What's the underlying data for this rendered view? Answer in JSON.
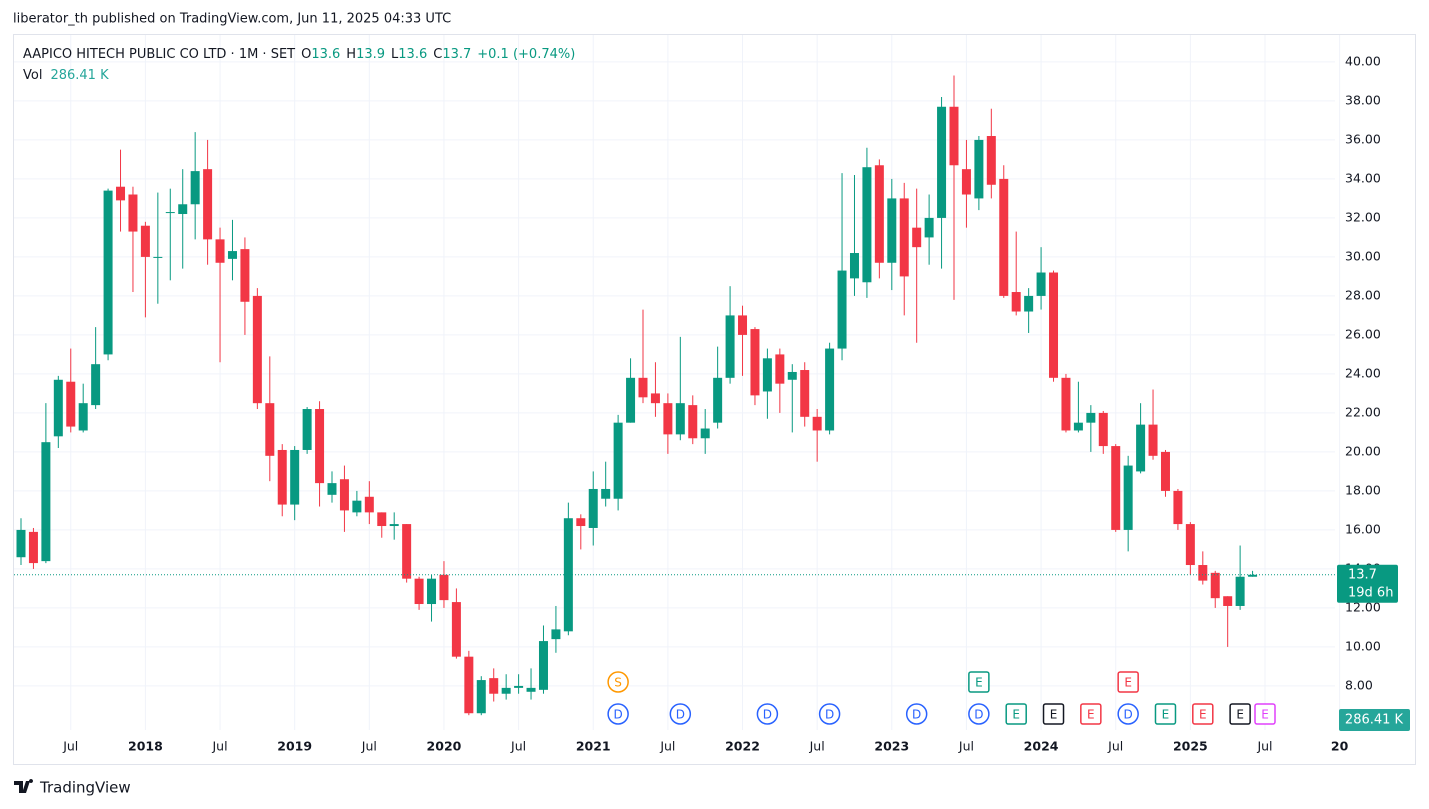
{
  "published": "liberator_th published on TradingView.com, Jun 11, 2025 04:33 UTC",
  "brand": "TradingView",
  "header": {
    "symbol": "AAPICO HITECH PUBLIC CO LTD · 1M · SET",
    "ohlc": [
      {
        "label": "O",
        "value": 13.6
      },
      {
        "label": "H",
        "value": 13.9
      },
      {
        "label": "L",
        "value": 13.6
      },
      {
        "label": "C",
        "value": 13.7
      }
    ],
    "change": "+0.1 (+0.74%)",
    "vol_label": "Vol",
    "vol_value": "286.41 K"
  },
  "price_label": {
    "value": 13.7,
    "countdown": "19d 6h"
  },
  "volume_label": "286.41 K",
  "chart_data": {
    "type": "candlestick",
    "up_color": "#089981",
    "down_color": "#f23645",
    "grid": true,
    "ylim": [
      5.74,
      41.38
    ],
    "yticks": [
      {
        "value": 8,
        "label": "8.00"
      },
      {
        "value": 10,
        "label": "10.00"
      },
      {
        "value": 12,
        "label": "12.00"
      },
      {
        "value": 14,
        "label": "14.00"
      },
      {
        "value": 16,
        "label": "16.00"
      },
      {
        "value": 18,
        "label": "18.00"
      },
      {
        "value": 20,
        "label": "20.00"
      },
      {
        "value": 22,
        "label": "22.00"
      },
      {
        "value": 24,
        "label": "24.00"
      },
      {
        "value": 26,
        "label": "26.00"
      },
      {
        "value": 28,
        "label": "28.00"
      },
      {
        "value": 30,
        "label": "30.00"
      },
      {
        "value": 32,
        "label": "32.00"
      },
      {
        "value": 34,
        "label": "34.00"
      },
      {
        "value": 36,
        "label": "36.00"
      },
      {
        "value": 38,
        "label": "38.00"
      },
      {
        "value": 40,
        "label": "40.00"
      }
    ],
    "xticks": [
      {
        "value": "2017-07",
        "label": "Jul"
      },
      {
        "value": "2018-01",
        "label": "2018"
      },
      {
        "value": "2018-07",
        "label": "Jul"
      },
      {
        "value": "2019-01",
        "label": "2019"
      },
      {
        "value": "2019-07",
        "label": "Jul"
      },
      {
        "value": "2020-01",
        "label": "2020"
      },
      {
        "value": "2020-07",
        "label": "Jul"
      },
      {
        "value": "2021-01",
        "label": "2021"
      },
      {
        "value": "2021-07",
        "label": "Jul"
      },
      {
        "value": "2022-01",
        "label": "2022"
      },
      {
        "value": "2022-07",
        "label": "Jul"
      },
      {
        "value": "2023-01",
        "label": "2023"
      },
      {
        "value": "2023-07",
        "label": "Jul"
      },
      {
        "value": "2024-01",
        "label": "2024"
      },
      {
        "value": "2024-07",
        "label": "Jul"
      },
      {
        "value": "2025-01",
        "label": "2025"
      },
      {
        "value": "2025-07",
        "label": "Jul"
      },
      {
        "value": "2026-01",
        "label": "20"
      }
    ],
    "x": [
      "2017-03",
      "2017-04",
      "2017-05",
      "2017-06",
      "2017-07",
      "2017-08",
      "2017-09",
      "2017-10",
      "2017-11",
      "2017-12",
      "2018-01",
      "2018-02",
      "2018-03",
      "2018-04",
      "2018-05",
      "2018-06",
      "2018-07",
      "2018-08",
      "2018-09",
      "2018-10",
      "2018-11",
      "2018-12",
      "2019-01",
      "2019-02",
      "2019-03",
      "2019-04",
      "2019-05",
      "2019-06",
      "2019-07",
      "2019-08",
      "2019-09",
      "2019-10",
      "2019-11",
      "2019-12",
      "2020-01",
      "2020-02",
      "2020-03",
      "2020-04",
      "2020-05",
      "2020-06",
      "2020-07",
      "2020-08",
      "2020-09",
      "2020-10",
      "2020-11",
      "2020-12",
      "2021-01",
      "2021-02",
      "2021-03",
      "2021-04",
      "2021-05",
      "2021-06",
      "2021-07",
      "2021-08",
      "2021-09",
      "2021-10",
      "2021-11",
      "2021-12",
      "2022-01",
      "2022-02",
      "2022-03",
      "2022-04",
      "2022-05",
      "2022-06",
      "2022-07",
      "2022-08",
      "2022-09",
      "2022-10",
      "2022-11",
      "2022-12",
      "2023-01",
      "2023-02",
      "2023-03",
      "2023-04",
      "2023-05",
      "2023-06",
      "2023-07",
      "2023-08",
      "2023-09",
      "2023-10",
      "2023-11",
      "2023-12",
      "2024-01",
      "2024-02",
      "2024-03",
      "2024-04",
      "2024-05",
      "2024-06",
      "2024-07",
      "2024-08",
      "2024-09",
      "2024-10",
      "2024-11",
      "2024-12",
      "2025-01",
      "2025-02",
      "2025-03",
      "2025-04",
      "2025-05",
      "2025-06"
    ],
    "open": [
      14.6,
      15.9,
      14.4,
      20.8,
      23.6,
      21.1,
      22.4,
      25.0,
      33.6,
      33.2,
      31.6,
      30.0,
      32.3,
      32.2,
      32.7,
      34.5,
      30.9,
      29.9,
      30.4,
      28.0,
      22.5,
      20.1,
      17.3,
      20.1,
      22.2,
      17.8,
      18.6,
      16.9,
      17.7,
      16.9,
      16.2,
      16.3,
      13.5,
      12.2,
      13.7,
      12.3,
      9.5,
      6.6,
      8.4,
      7.6,
      7.9,
      7.7,
      7.8,
      10.4,
      10.8,
      16.6,
      16.1,
      17.6,
      17.6,
      21.5,
      23.8,
      23.0,
      22.5,
      20.9,
      22.4,
      20.7,
      21.5,
      23.8,
      27.0,
      26.3,
      23.1,
      25.0,
      23.7,
      24.2,
      21.8,
      21.1,
      25.3,
      28.9,
      28.7,
      34.7,
      29.7,
      33.0,
      31.5,
      31.0,
      32.0,
      37.7,
      34.5,
      33.0,
      36.2,
      34.0,
      28.2,
      27.2,
      28.0,
      29.2,
      23.8,
      21.1,
      21.5,
      22.0,
      20.3,
      16.0,
      19.0,
      21.4,
      20.0,
      18.0,
      16.3,
      14.2,
      13.8,
      12.6,
      12.1,
      13.6
    ],
    "high": [
      16.6,
      16.1,
      22.5,
      23.9,
      25.3,
      23.5,
      26.4,
      33.5,
      35.5,
      33.6,
      31.8,
      33.3,
      33.5,
      34.5,
      36.4,
      36.0,
      31.5,
      31.9,
      31.0,
      28.4,
      24.9,
      20.4,
      20.3,
      22.3,
      22.6,
      19.0,
      19.3,
      18.0,
      18.5,
      16.9,
      16.9,
      16.3,
      13.6,
      13.7,
      14.4,
      13.0,
      9.8,
      8.5,
      8.9,
      8.6,
      8.6,
      8.9,
      11.1,
      12.1,
      17.4,
      16.8,
      19.0,
      19.5,
      21.9,
      24.8,
      27.3,
      24.6,
      23.0,
      25.9,
      22.9,
      22.2,
      25.4,
      28.5,
      27.5,
      26.4,
      25.3,
      25.3,
      24.5,
      24.6,
      22.2,
      25.6,
      34.3,
      34.2,
      35.6,
      35.0,
      34.0,
      33.8,
      33.5,
      33.2,
      38.2,
      39.3,
      36.0,
      36.2,
      37.6,
      34.7,
      31.3,
      28.4,
      30.5,
      29.3,
      24.0,
      23.6,
      22.4,
      22.1,
      20.4,
      19.8,
      22.5,
      23.2,
      20.1,
      18.1,
      16.4,
      14.9,
      13.9,
      12.6,
      15.2,
      13.9
    ],
    "low": [
      14.2,
      14.0,
      14.3,
      20.2,
      21.0,
      21.0,
      22.2,
      24.7,
      31.3,
      28.2,
      26.9,
      27.6,
      28.8,
      29.4,
      30.9,
      29.6,
      24.6,
      28.8,
      26.0,
      22.2,
      18.5,
      16.7,
      16.5,
      19.9,
      17.2,
      17.4,
      15.9,
      16.7,
      16.3,
      15.6,
      15.5,
      13.3,
      11.9,
      11.3,
      12.0,
      9.4,
      6.5,
      6.5,
      7.2,
      7.3,
      7.6,
      7.3,
      7.6,
      9.7,
      10.6,
      15.0,
      15.2,
      17.2,
      17.0,
      21.5,
      22.5,
      21.8,
      19.9,
      20.6,
      20.4,
      19.9,
      21.2,
      23.5,
      23.9,
      22.4,
      21.7,
      22.0,
      21.0,
      21.3,
      19.5,
      20.9,
      24.7,
      28.0,
      27.9,
      28.9,
      28.3,
      27.0,
      25.6,
      29.6,
      29.4,
      27.8,
      31.5,
      32.4,
      33.0,
      27.9,
      27.0,
      26.1,
      27.3,
      23.6,
      21.0,
      21.0,
      20.0,
      19.9,
      15.9,
      14.9,
      18.9,
      19.6,
      17.7,
      16.0,
      13.7,
      13.2,
      12.0,
      10.0,
      11.9,
      13.6
    ],
    "close": [
      16.0,
      14.3,
      20.5,
      23.7,
      21.3,
      22.5,
      24.5,
      33.4,
      32.9,
      31.3,
      30.0,
      30.0,
      32.3,
      32.7,
      34.4,
      30.9,
      29.7,
      30.3,
      27.7,
      22.5,
      19.8,
      17.3,
      20.1,
      22.2,
      18.4,
      18.4,
      17.0,
      17.5,
      16.9,
      16.2,
      16.3,
      13.5,
      12.2,
      13.5,
      12.4,
      9.5,
      6.6,
      8.3,
      7.6,
      7.9,
      8.0,
      7.9,
      10.3,
      10.9,
      16.6,
      16.2,
      18.1,
      18.1,
      21.5,
      23.8,
      22.8,
      22.5,
      20.9,
      22.5,
      20.7,
      21.2,
      23.8,
      27.0,
      26.0,
      22.9,
      24.8,
      23.5,
      24.1,
      21.8,
      21.1,
      25.3,
      29.3,
      30.2,
      34.6,
      29.7,
      33.0,
      29.0,
      30.5,
      32.0,
      37.7,
      34.7,
      33.2,
      36.0,
      33.7,
      28.0,
      27.2,
      28.0,
      29.2,
      23.8,
      21.1,
      21.5,
      22.0,
      20.3,
      16.0,
      19.3,
      21.4,
      19.8,
      18.0,
      16.3,
      14.2,
      13.4,
      12.5,
      12.1,
      13.6,
      13.7
    ],
    "events": [
      {
        "x": "2021-03",
        "label": "D",
        "color": "#2962ff"
      },
      {
        "x": "2021-03",
        "label": "S",
        "color": "#ff9800"
      },
      {
        "x": "2021-08",
        "label": "D",
        "color": "#2962ff"
      },
      {
        "x": "2022-03",
        "label": "D",
        "color": "#2962ff"
      },
      {
        "x": "2022-08",
        "label": "D",
        "color": "#2962ff"
      },
      {
        "x": "2023-03",
        "label": "D",
        "color": "#2962ff"
      },
      {
        "x": "2023-08",
        "label": "D",
        "color": "#2962ff"
      },
      {
        "x": "2023-08",
        "label": "E",
        "color": "#089981"
      },
      {
        "x": "2023-11",
        "label": "E",
        "color": "#089981"
      },
      {
        "x": "2024-02",
        "label": "E",
        "color": "#131722"
      },
      {
        "x": "2024-05",
        "label": "E",
        "color": "#f23645"
      },
      {
        "x": "2024-08",
        "label": "D",
        "color": "#2962ff"
      },
      {
        "x": "2024-08",
        "label": "E",
        "color": "#f23645"
      },
      {
        "x": "2024-11",
        "label": "E",
        "color": "#089981"
      },
      {
        "x": "2025-02",
        "label": "E",
        "color": "#f23645"
      },
      {
        "x": "2025-05",
        "label": "E",
        "color": "#131722"
      },
      {
        "x": "2025-07",
        "label": "E",
        "color": "#e040fb"
      }
    ]
  }
}
